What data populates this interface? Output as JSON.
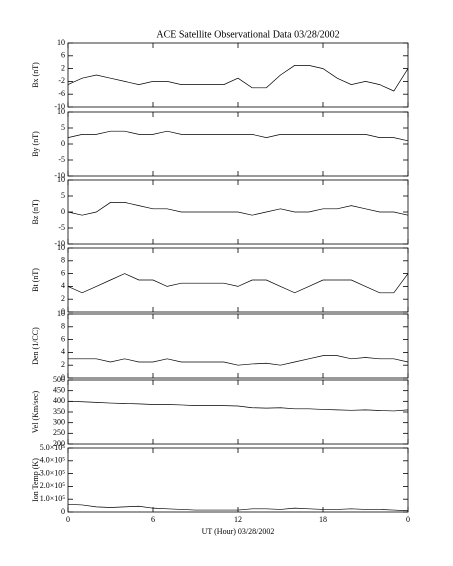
{
  "chart_data": [
    {
      "type": "line",
      "title": "ACE Satellite Observational Data   03/28/2002",
      "ylabel": "Bx (nT)",
      "color": "#000000",
      "x": [
        0,
        1,
        2,
        3,
        4,
        5,
        6,
        7,
        8,
        9,
        10,
        11,
        12,
        13,
        14,
        15,
        16,
        17,
        18,
        19,
        20,
        21,
        22,
        23,
        24
      ],
      "values": [
        -3,
        -1,
        0,
        -1,
        -2,
        -3,
        -2,
        -2,
        -3,
        -3,
        -3,
        -3,
        -1,
        -4,
        -4,
        0,
        3,
        3,
        2,
        -1,
        -3,
        -2,
        -3,
        -5,
        2
      ],
      "xlim": [
        0,
        24
      ],
      "ylim": [
        -10,
        10
      ],
      "yticks": [
        -10,
        -6,
        -2,
        2,
        6,
        10
      ]
    },
    {
      "type": "line",
      "ylabel": "By (nT)",
      "color": "#000000",
      "x": [
        0,
        1,
        2,
        3,
        4,
        5,
        6,
        7,
        8,
        9,
        10,
        11,
        12,
        13,
        14,
        15,
        16,
        17,
        18,
        19,
        20,
        21,
        22,
        23,
        24
      ],
      "values": [
        2,
        3,
        3,
        4,
        4,
        3,
        3,
        4,
        3,
        3,
        3,
        3,
        3,
        3,
        2,
        3,
        3,
        3,
        3,
        3,
        3,
        3,
        2,
        2,
        1
      ],
      "xlim": [
        0,
        24
      ],
      "ylim": [
        -10,
        10
      ],
      "yticks": [
        -10,
        -5,
        0,
        5,
        10
      ]
    },
    {
      "type": "line",
      "ylabel": "Bz (nT)",
      "color": "#000000",
      "x": [
        0,
        1,
        2,
        3,
        4,
        5,
        6,
        7,
        8,
        9,
        10,
        11,
        12,
        13,
        14,
        15,
        16,
        17,
        18,
        19,
        20,
        21,
        22,
        23,
        24
      ],
      "values": [
        0,
        -1,
        0,
        3,
        3,
        2,
        1,
        1,
        0,
        0,
        0,
        0,
        0,
        -1,
        0,
        1,
        0,
        0,
        1,
        1,
        2,
        1,
        0,
        0,
        -1
      ],
      "xlim": [
        0,
        24
      ],
      "ylim": [
        -10,
        10
      ],
      "yticks": [
        -10,
        -5,
        0,
        5,
        10
      ]
    },
    {
      "type": "line",
      "ylabel": "Bt (nT)",
      "color": "#000000",
      "x": [
        0,
        1,
        2,
        3,
        4,
        5,
        6,
        7,
        8,
        9,
        10,
        11,
        12,
        13,
        14,
        15,
        16,
        17,
        18,
        19,
        20,
        21,
        22,
        23,
        24
      ],
      "values": [
        4,
        3,
        4,
        5,
        6,
        5,
        5,
        4,
        4.5,
        4.5,
        4.5,
        4.5,
        4,
        5,
        5,
        4,
        3,
        4,
        5,
        5,
        5,
        4,
        3,
        3,
        6
      ],
      "xlim": [
        0,
        24
      ],
      "ylim": [
        0,
        10
      ],
      "yticks": [
        0,
        2,
        4,
        6,
        8,
        10
      ]
    },
    {
      "type": "line",
      "ylabel": "Den (1/CC)",
      "color": "#000000",
      "x": [
        0,
        1,
        2,
        3,
        4,
        5,
        6,
        7,
        8,
        9,
        10,
        11,
        12,
        13,
        14,
        15,
        16,
        17,
        18,
        19,
        20,
        21,
        22,
        23,
        24
      ],
      "values": [
        3,
        3,
        3,
        2.5,
        3,
        2.5,
        2.5,
        3,
        2.5,
        2.5,
        2.5,
        2.5,
        2,
        2.2,
        2.3,
        2,
        2.5,
        3,
        3.5,
        3.5,
        3,
        3.2,
        3,
        3,
        2.5
      ],
      "xlim": [
        0,
        24
      ],
      "ylim": [
        0,
        10
      ],
      "yticks": [
        0,
        2,
        4,
        6,
        8,
        10
      ]
    },
    {
      "type": "line",
      "ylabel": "Vel (Km/sec)",
      "color": "#000000",
      "x": [
        0,
        1,
        2,
        3,
        4,
        5,
        6,
        7,
        8,
        9,
        10,
        11,
        12,
        13,
        14,
        15,
        16,
        17,
        18,
        19,
        20,
        21,
        22,
        23,
        24
      ],
      "values": [
        400,
        398,
        395,
        392,
        390,
        388,
        385,
        385,
        383,
        380,
        380,
        380,
        378,
        370,
        368,
        370,
        365,
        365,
        362,
        360,
        358,
        360,
        357,
        355,
        360
      ],
      "xlim": [
        0,
        24
      ],
      "ylim": [
        200,
        500
      ],
      "yticks": [
        200,
        250,
        300,
        350,
        400,
        450,
        500
      ]
    },
    {
      "type": "line",
      "ylabel": "Ion Temp (K)",
      "xlabel": "UT (Hour)   03/28/2002",
      "color": "#000000",
      "x": [
        0,
        1,
        2,
        3,
        4,
        5,
        6,
        7,
        8,
        9,
        10,
        11,
        12,
        13,
        14,
        15,
        16,
        17,
        18,
        19,
        20,
        21,
        22,
        23,
        24
      ],
      "values": [
        60000,
        55000,
        40000,
        35000,
        40000,
        45000,
        30000,
        25000,
        20000,
        15000,
        15000,
        15000,
        15000,
        25000,
        25000,
        20000,
        30000,
        25000,
        20000,
        20000,
        25000,
        20000,
        20000,
        15000,
        10000
      ],
      "xlim": [
        0,
        24
      ],
      "ylim": [
        0,
        500000
      ],
      "yticks": [
        0,
        {
          "value": 100000,
          "label": "1.0×10⁵"
        },
        {
          "value": 200000,
          "label": "2.0×10⁵"
        },
        {
          "value": 300000,
          "label": "3.0×10⁵"
        },
        {
          "value": 400000,
          "label": "4.0×10⁵"
        },
        {
          "value": 500000,
          "label": "5.0×10⁵"
        }
      ],
      "xticks": [
        0,
        6,
        12,
        18,
        {
          "value": 24,
          "label": "0"
        }
      ]
    }
  ]
}
